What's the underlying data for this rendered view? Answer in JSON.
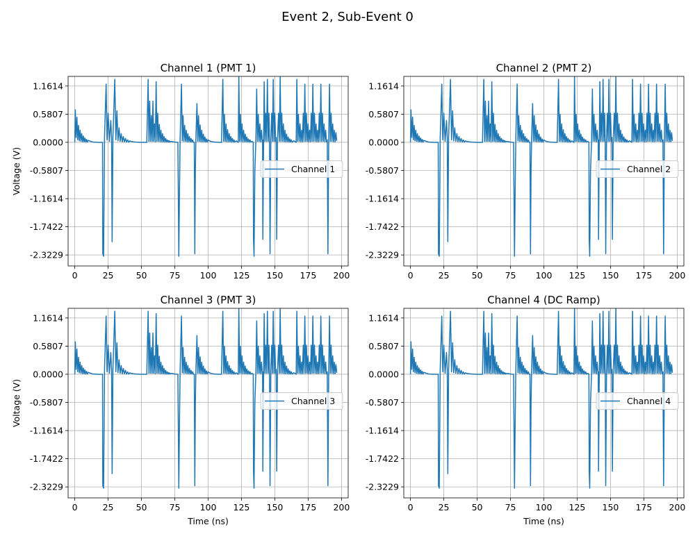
{
  "figure": {
    "suptitle": "Event 2, Sub-Event 0"
  },
  "chart_data": [
    {
      "type": "line",
      "title": "Channel 1 (PMT 1)",
      "xlabel": "",
      "ylabel": "Voltage (V)",
      "xlim": [
        -5,
        205
      ],
      "ylim": [
        -2.55,
        1.36
      ],
      "xticks": [
        0,
        25,
        50,
        75,
        100,
        125,
        150,
        175,
        200
      ],
      "yticks": [
        1.1614,
        0.5807,
        0.0,
        -0.5807,
        -1.1614,
        -1.7422,
        -2.3229
      ],
      "ytick_labels": [
        "1.1614",
        "0.5807",
        "0.0000",
        "-0.5807",
        "-1.1614",
        "-1.7422",
        "-2.3229"
      ],
      "grid": true,
      "legend_position": "center-right",
      "series": [
        {
          "name": "Channel 1",
          "color": "#1f77b4"
        }
      ]
    },
    {
      "type": "line",
      "title": "Channel 2 (PMT 2)",
      "xlabel": "",
      "ylabel": "",
      "xlim": [
        -5,
        205
      ],
      "ylim": [
        -2.55,
        1.36
      ],
      "xticks": [
        0,
        25,
        50,
        75,
        100,
        125,
        150,
        175,
        200
      ],
      "yticks": [
        1.1614,
        0.5807,
        0.0,
        -0.5807,
        -1.1614,
        -1.7422,
        -2.3229
      ],
      "ytick_labels": [
        "1.1614",
        "0.5807",
        "0.0000",
        "-0.5807",
        "-1.1614",
        "-1.7422",
        "-2.3229"
      ],
      "grid": true,
      "legend_position": "center-right",
      "series": [
        {
          "name": "Channel 2",
          "color": "#1f77b4"
        }
      ]
    },
    {
      "type": "line",
      "title": "Channel 3 (PMT 3)",
      "xlabel": "Time (ns)",
      "ylabel": "Voltage (V)",
      "xlim": [
        -5,
        205
      ],
      "ylim": [
        -2.55,
        1.36
      ],
      "xticks": [
        0,
        25,
        50,
        75,
        100,
        125,
        150,
        175,
        200
      ],
      "yticks": [
        1.1614,
        0.5807,
        0.0,
        -0.5807,
        -1.1614,
        -1.7422,
        -2.3229
      ],
      "ytick_labels": [
        "1.1614",
        "0.5807",
        "0.0000",
        "-0.5807",
        "-1.1614",
        "-1.7422",
        "-2.3229"
      ],
      "grid": true,
      "legend_position": "center-right",
      "series": [
        {
          "name": "Channel 3",
          "color": "#1f77b4"
        }
      ]
    },
    {
      "type": "line",
      "title": "Channel 4 (DC Ramp)",
      "xlabel": "Time (ns)",
      "ylabel": "",
      "xlim": [
        -5,
        205
      ],
      "ylim": [
        -2.55,
        1.36
      ],
      "xticks": [
        0,
        25,
        50,
        75,
        100,
        125,
        150,
        175,
        200
      ],
      "yticks": [
        1.1614,
        0.5807,
        0.0,
        -0.5807,
        -1.1614,
        -1.7422,
        -2.3229
      ],
      "ytick_labels": [
        "1.1614",
        "0.5807",
        "0.0000",
        "-0.5807",
        "-1.1614",
        "-1.7422",
        "-2.3229"
      ],
      "grid": true,
      "legend_position": "center-right",
      "series": [
        {
          "name": "Channel 4",
          "color": "#1f77b4"
        }
      ]
    }
  ],
  "waveform": {
    "points": [
      [
        0,
        0
      ],
      [
        0.4,
        0.67
      ],
      [
        1,
        0.1
      ],
      [
        1.6,
        0.52
      ],
      [
        2.2,
        0.05
      ],
      [
        2.8,
        0.35
      ],
      [
        3.4,
        0.03
      ],
      [
        4,
        0.25
      ],
      [
        4.6,
        0.02
      ],
      [
        5.2,
        0.18
      ],
      [
        5.8,
        0.01
      ],
      [
        6.4,
        0.13
      ],
      [
        7,
        0.01
      ],
      [
        7.6,
        0.09
      ],
      [
        8.2,
        0.005
      ],
      [
        8.8,
        0.06
      ],
      [
        9.4,
        0.004
      ],
      [
        10,
        0.04
      ],
      [
        11,
        0.03
      ],
      [
        12,
        0.02
      ],
      [
        13,
        0.01
      ],
      [
        14,
        0.005
      ],
      [
        16,
        0.002
      ],
      [
        18,
        0
      ],
      [
        20,
        0
      ],
      [
        20.8,
        0
      ],
      [
        21,
        -2.3
      ],
      [
        21.6,
        -2.35
      ],
      [
        22,
        -1.0
      ],
      [
        22.3,
        0.1
      ],
      [
        23.5,
        1.2
      ],
      [
        24.2,
        0.05
      ],
      [
        25,
        0.6
      ],
      [
        26,
        0.02
      ],
      [
        27,
        0.45
      ],
      [
        27.6,
        0.1
      ],
      [
        28,
        -2.05
      ],
      [
        28.6,
        0.1
      ],
      [
        29.2,
        0.6
      ],
      [
        30,
        1.3
      ],
      [
        30.8,
        0.05
      ],
      [
        31.6,
        0.65
      ],
      [
        32.4,
        0.03
      ],
      [
        33.2,
        0.3
      ],
      [
        34,
        0.02
      ],
      [
        34.8,
        0.18
      ],
      [
        35.6,
        0.01
      ],
      [
        36.4,
        0.12
      ],
      [
        37.2,
        0.01
      ],
      [
        38,
        0.08
      ],
      [
        38.8,
        0.005
      ],
      [
        39.6,
        0.05
      ],
      [
        40.4,
        0.003
      ],
      [
        41.2,
        0.03
      ],
      [
        42,
        0.02
      ],
      [
        43,
        0.015
      ],
      [
        44,
        0.01
      ],
      [
        46,
        0.005
      ],
      [
        48,
        0.002
      ],
      [
        50,
        0
      ],
      [
        53,
        0
      ],
      [
        54,
        0
      ],
      [
        55,
        1.3
      ],
      [
        55.6,
        0.02
      ],
      [
        56.2,
        0.85
      ],
      [
        56.8,
        0.02
      ],
      [
        57.4,
        0.55
      ],
      [
        58,
        0.02
      ],
      [
        58.6,
        0.85
      ],
      [
        59.2,
        0.02
      ],
      [
        59.8,
        0.38
      ],
      [
        60.4,
        0.01
      ],
      [
        61,
        1.25
      ],
      [
        61.6,
        0.02
      ],
      [
        62.2,
        0.6
      ],
      [
        62.8,
        0.02
      ],
      [
        63.4,
        0.37
      ],
      [
        64,
        0.01
      ],
      [
        64.6,
        0.25
      ],
      [
        65.2,
        0.01
      ],
      [
        65.8,
        0.18
      ],
      [
        66.4,
        0.01
      ],
      [
        67,
        0.12
      ],
      [
        67.6,
        0.005
      ],
      [
        68.2,
        0.08
      ],
      [
        68.8,
        0.005
      ],
      [
        69.4,
        0.05
      ],
      [
        70,
        0.004
      ],
      [
        70.6,
        0.035
      ],
      [
        71.2,
        0.003
      ],
      [
        71.8,
        0.02
      ],
      [
        73,
        0.015
      ],
      [
        74,
        0.01
      ],
      [
        75,
        0.005
      ],
      [
        76,
        0.002
      ],
      [
        77,
        0
      ],
      [
        77.3,
        0
      ],
      [
        78,
        -2.35
      ],
      [
        78.5,
        -1.0
      ],
      [
        79,
        0.1
      ],
      [
        80,
        1.2
      ],
      [
        80.6,
        0.03
      ],
      [
        81.2,
        0.55
      ],
      [
        81.8,
        0.02
      ],
      [
        82.4,
        0.35
      ],
      [
        83,
        0.02
      ],
      [
        83.6,
        0.25
      ],
      [
        84.2,
        0.01
      ],
      [
        84.8,
        0.18
      ],
      [
        85.4,
        0.01
      ],
      [
        86,
        0.12
      ],
      [
        86.6,
        0.005
      ],
      [
        87.2,
        0.08
      ],
      [
        87.8,
        0.005
      ],
      [
        88.4,
        0.05
      ],
      [
        89,
        0
      ],
      [
        89.6,
        0
      ],
      [
        90,
        -2.3
      ],
      [
        90.4,
        -0.6
      ],
      [
        90.8,
        0.05
      ],
      [
        91.6,
        0.8
      ],
      [
        92.2,
        0.02
      ],
      [
        92.8,
        0.55
      ],
      [
        93.4,
        0.02
      ],
      [
        94,
        0.36
      ],
      [
        94.6,
        0.01
      ],
      [
        95.2,
        0.25
      ],
      [
        95.8,
        0.01
      ],
      [
        96.4,
        0.17
      ],
      [
        97,
        0.01
      ],
      [
        97.6,
        0.11
      ],
      [
        98.2,
        0.005
      ],
      [
        98.8,
        0.07
      ],
      [
        99.4,
        0.004
      ],
      [
        100,
        0.05
      ],
      [
        101,
        0.03
      ],
      [
        102,
        0.02
      ],
      [
        103,
        0.012
      ],
      [
        104,
        0.008
      ],
      [
        105,
        0.004
      ],
      [
        107,
        0.002
      ],
      [
        109,
        0
      ],
      [
        110,
        0
      ],
      [
        111,
        1.3
      ],
      [
        111.6,
        0.02
      ],
      [
        112.2,
        0.58
      ],
      [
        112.8,
        0.02
      ],
      [
        113.4,
        0.38
      ],
      [
        114,
        0.01
      ],
      [
        114.6,
        0.26
      ],
      [
        115.2,
        0.01
      ],
      [
        115.8,
        0.18
      ],
      [
        116.4,
        0.01
      ],
      [
        117,
        0.12
      ],
      [
        117.6,
        0.005
      ],
      [
        118.2,
        0.08
      ],
      [
        118.8,
        0.004
      ],
      [
        119.4,
        0.05
      ],
      [
        120,
        0.003
      ],
      [
        121,
        0.03
      ],
      [
        122,
        0.01
      ],
      [
        122.6,
        0
      ],
      [
        123,
        1.35
      ],
      [
        123.6,
        0.02
      ],
      [
        124.2,
        0.58
      ],
      [
        124.8,
        0.02
      ],
      [
        125.4,
        0.38
      ],
      [
        126,
        0.01
      ],
      [
        126.6,
        0.25
      ],
      [
        127.2,
        0.01
      ],
      [
        127.8,
        0.17
      ],
      [
        128.4,
        0.01
      ],
      [
        129,
        0.11
      ],
      [
        129.6,
        0.005
      ],
      [
        130.2,
        0.07
      ],
      [
        130.8,
        0.004
      ],
      [
        131.4,
        0.05
      ],
      [
        132,
        0.003
      ],
      [
        133,
        0.02
      ],
      [
        133.8,
        0
      ],
      [
        134,
        -2.0
      ],
      [
        134.4,
        -2.35
      ],
      [
        135,
        -0.6
      ],
      [
        135.8,
        0.05
      ],
      [
        136.4,
        1.1
      ],
      [
        137,
        0.02
      ],
      [
        137.6,
        0.58
      ],
      [
        138.2,
        0.02
      ],
      [
        138.8,
        0.38
      ],
      [
        139.4,
        0.01
      ],
      [
        140,
        0.25
      ],
      [
        140.6,
        0.01
      ],
      [
        140.8,
        0.05
      ],
      [
        141,
        -2.0
      ],
      [
        141.6,
        0.05
      ],
      [
        142,
        1.25
      ],
      [
        142.6,
        0.02
      ],
      [
        143.2,
        0.6
      ],
      [
        143.8,
        0.02
      ],
      [
        144.4,
        1.3
      ],
      [
        145,
        0.02
      ],
      [
        145.6,
        0.6
      ],
      [
        146,
        0.02
      ],
      [
        146.4,
        -2.3
      ],
      [
        147,
        0.05
      ],
      [
        147.6,
        0.6
      ],
      [
        148.2,
        0.02
      ],
      [
        148.8,
        1.3
      ],
      [
        149.4,
        0.02
      ],
      [
        150,
        0.6
      ],
      [
        150.6,
        0.02
      ],
      [
        151,
        0.1
      ],
      [
        151.4,
        -2.0
      ],
      [
        152,
        0.05
      ],
      [
        152.8,
        0.6
      ],
      [
        153.4,
        0.02
      ],
      [
        154,
        1.35
      ],
      [
        154.6,
        0.02
      ],
      [
        155.2,
        0.6
      ],
      [
        155.8,
        0.02
      ],
      [
        156.4,
        0.38
      ],
      [
        157,
        0.01
      ],
      [
        157.6,
        0.25
      ],
      [
        158.2,
        0.01
      ],
      [
        158.8,
        0.17
      ],
      [
        159.4,
        0.01
      ],
      [
        160,
        0.11
      ],
      [
        160.6,
        0.005
      ],
      [
        161.2,
        0.07
      ],
      [
        161.8,
        0.004
      ],
      [
        162.4,
        0.05
      ],
      [
        163,
        0.003
      ],
      [
        164,
        0.03
      ],
      [
        165,
        0.02
      ],
      [
        166,
        0
      ],
      [
        166.5,
        1.3
      ],
      [
        167.1,
        0.02
      ],
      [
        167.7,
        0.58
      ],
      [
        168.3,
        0.02
      ],
      [
        168.9,
        0.38
      ],
      [
        169.5,
        0.01
      ],
      [
        170.1,
        0.25
      ],
      [
        170.7,
        0.01
      ],
      [
        171.3,
        0.6
      ],
      [
        171.9,
        0.02
      ],
      [
        172.5,
        1.2
      ],
      [
        173.1,
        0.02
      ],
      [
        173.7,
        0.6
      ],
      [
        174.3,
        0.02
      ],
      [
        174.9,
        0.38
      ],
      [
        175.5,
        0.01
      ],
      [
        176.1,
        0.25
      ],
      [
        176.7,
        0.01
      ],
      [
        177.3,
        0.6
      ],
      [
        177.9,
        0.02
      ],
      [
        178.5,
        1.2
      ],
      [
        179.1,
        0.02
      ],
      [
        179.7,
        0.6
      ],
      [
        180.3,
        0.02
      ],
      [
        180.9,
        0.38
      ],
      [
        181.5,
        0.01
      ],
      [
        182.1,
        0.25
      ],
      [
        182.7,
        0.01
      ],
      [
        183.3,
        0.6
      ],
      [
        183.9,
        0.02
      ],
      [
        184.5,
        1.2
      ],
      [
        185.1,
        0.02
      ],
      [
        185.7,
        0.6
      ],
      [
        186.3,
        0.02
      ],
      [
        186.9,
        0.38
      ],
      [
        187.5,
        0.01
      ],
      [
        188.1,
        0.25
      ],
      [
        188.7,
        0.01
      ],
      [
        189.3,
        0.05
      ],
      [
        189.8,
        -2.3
      ],
      [
        190.4,
        0.05
      ],
      [
        191,
        1.2
      ],
      [
        191.6,
        0.02
      ],
      [
        192.2,
        0.6
      ],
      [
        192.8,
        0.02
      ],
      [
        193.4,
        0.38
      ],
      [
        194,
        0.01
      ],
      [
        194.6,
        0.25
      ],
      [
        195.2,
        0.01
      ],
      [
        195.8,
        0.2
      ],
      [
        196.4,
        0.03
      ]
    ]
  }
}
